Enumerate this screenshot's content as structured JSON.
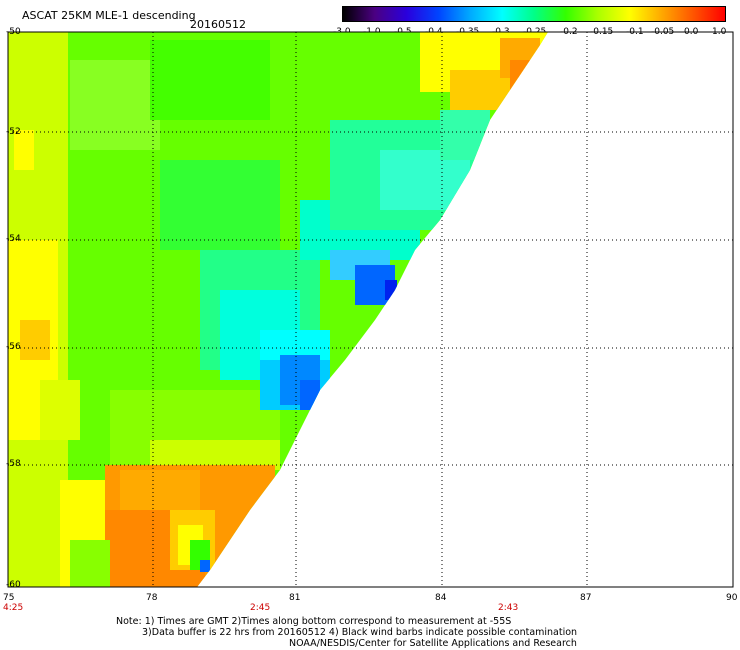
{
  "header": {
    "title": "ASCAT 25KM MLE-1 descending",
    "date": "20160512"
  },
  "colorbar": {
    "labels": [
      "-3.0",
      "-1.0",
      "-0.5",
      "-0.4",
      "-0.35",
      "-0.3",
      "-0.25",
      "-0.2",
      "-0.15",
      "-0.1",
      "-0.05",
      "0.0",
      "1.0"
    ],
    "stops": [
      "#000000",
      "#4b0082",
      "#2a00dd",
      "#0044ff",
      "#00aaff",
      "#00ffff",
      "#00ff88",
      "#33ff00",
      "#aaff00",
      "#ffff00",
      "#ffaa00",
      "#ff5500",
      "#ff0000"
    ]
  },
  "map": {
    "lat_labels": [
      "-50",
      "-52",
      "-54",
      "-56",
      "-58",
      "-60"
    ],
    "lon_labels": [
      "75",
      "78",
      "81",
      "84",
      "87",
      "90"
    ],
    "pass_times": [
      "4:25",
      "2:45",
      "2:43"
    ]
  },
  "notes": {
    "line1": "Note: 1) Times are GMT 2)Times along bottom correspond to measurement at -55S",
    "line2": "3)Data buffer is 22 hrs from 20160512 4) Black wind barbs indicate possible contamination",
    "line3": "NOAA/NESDIS/Center for Satellite Applications and Research"
  }
}
